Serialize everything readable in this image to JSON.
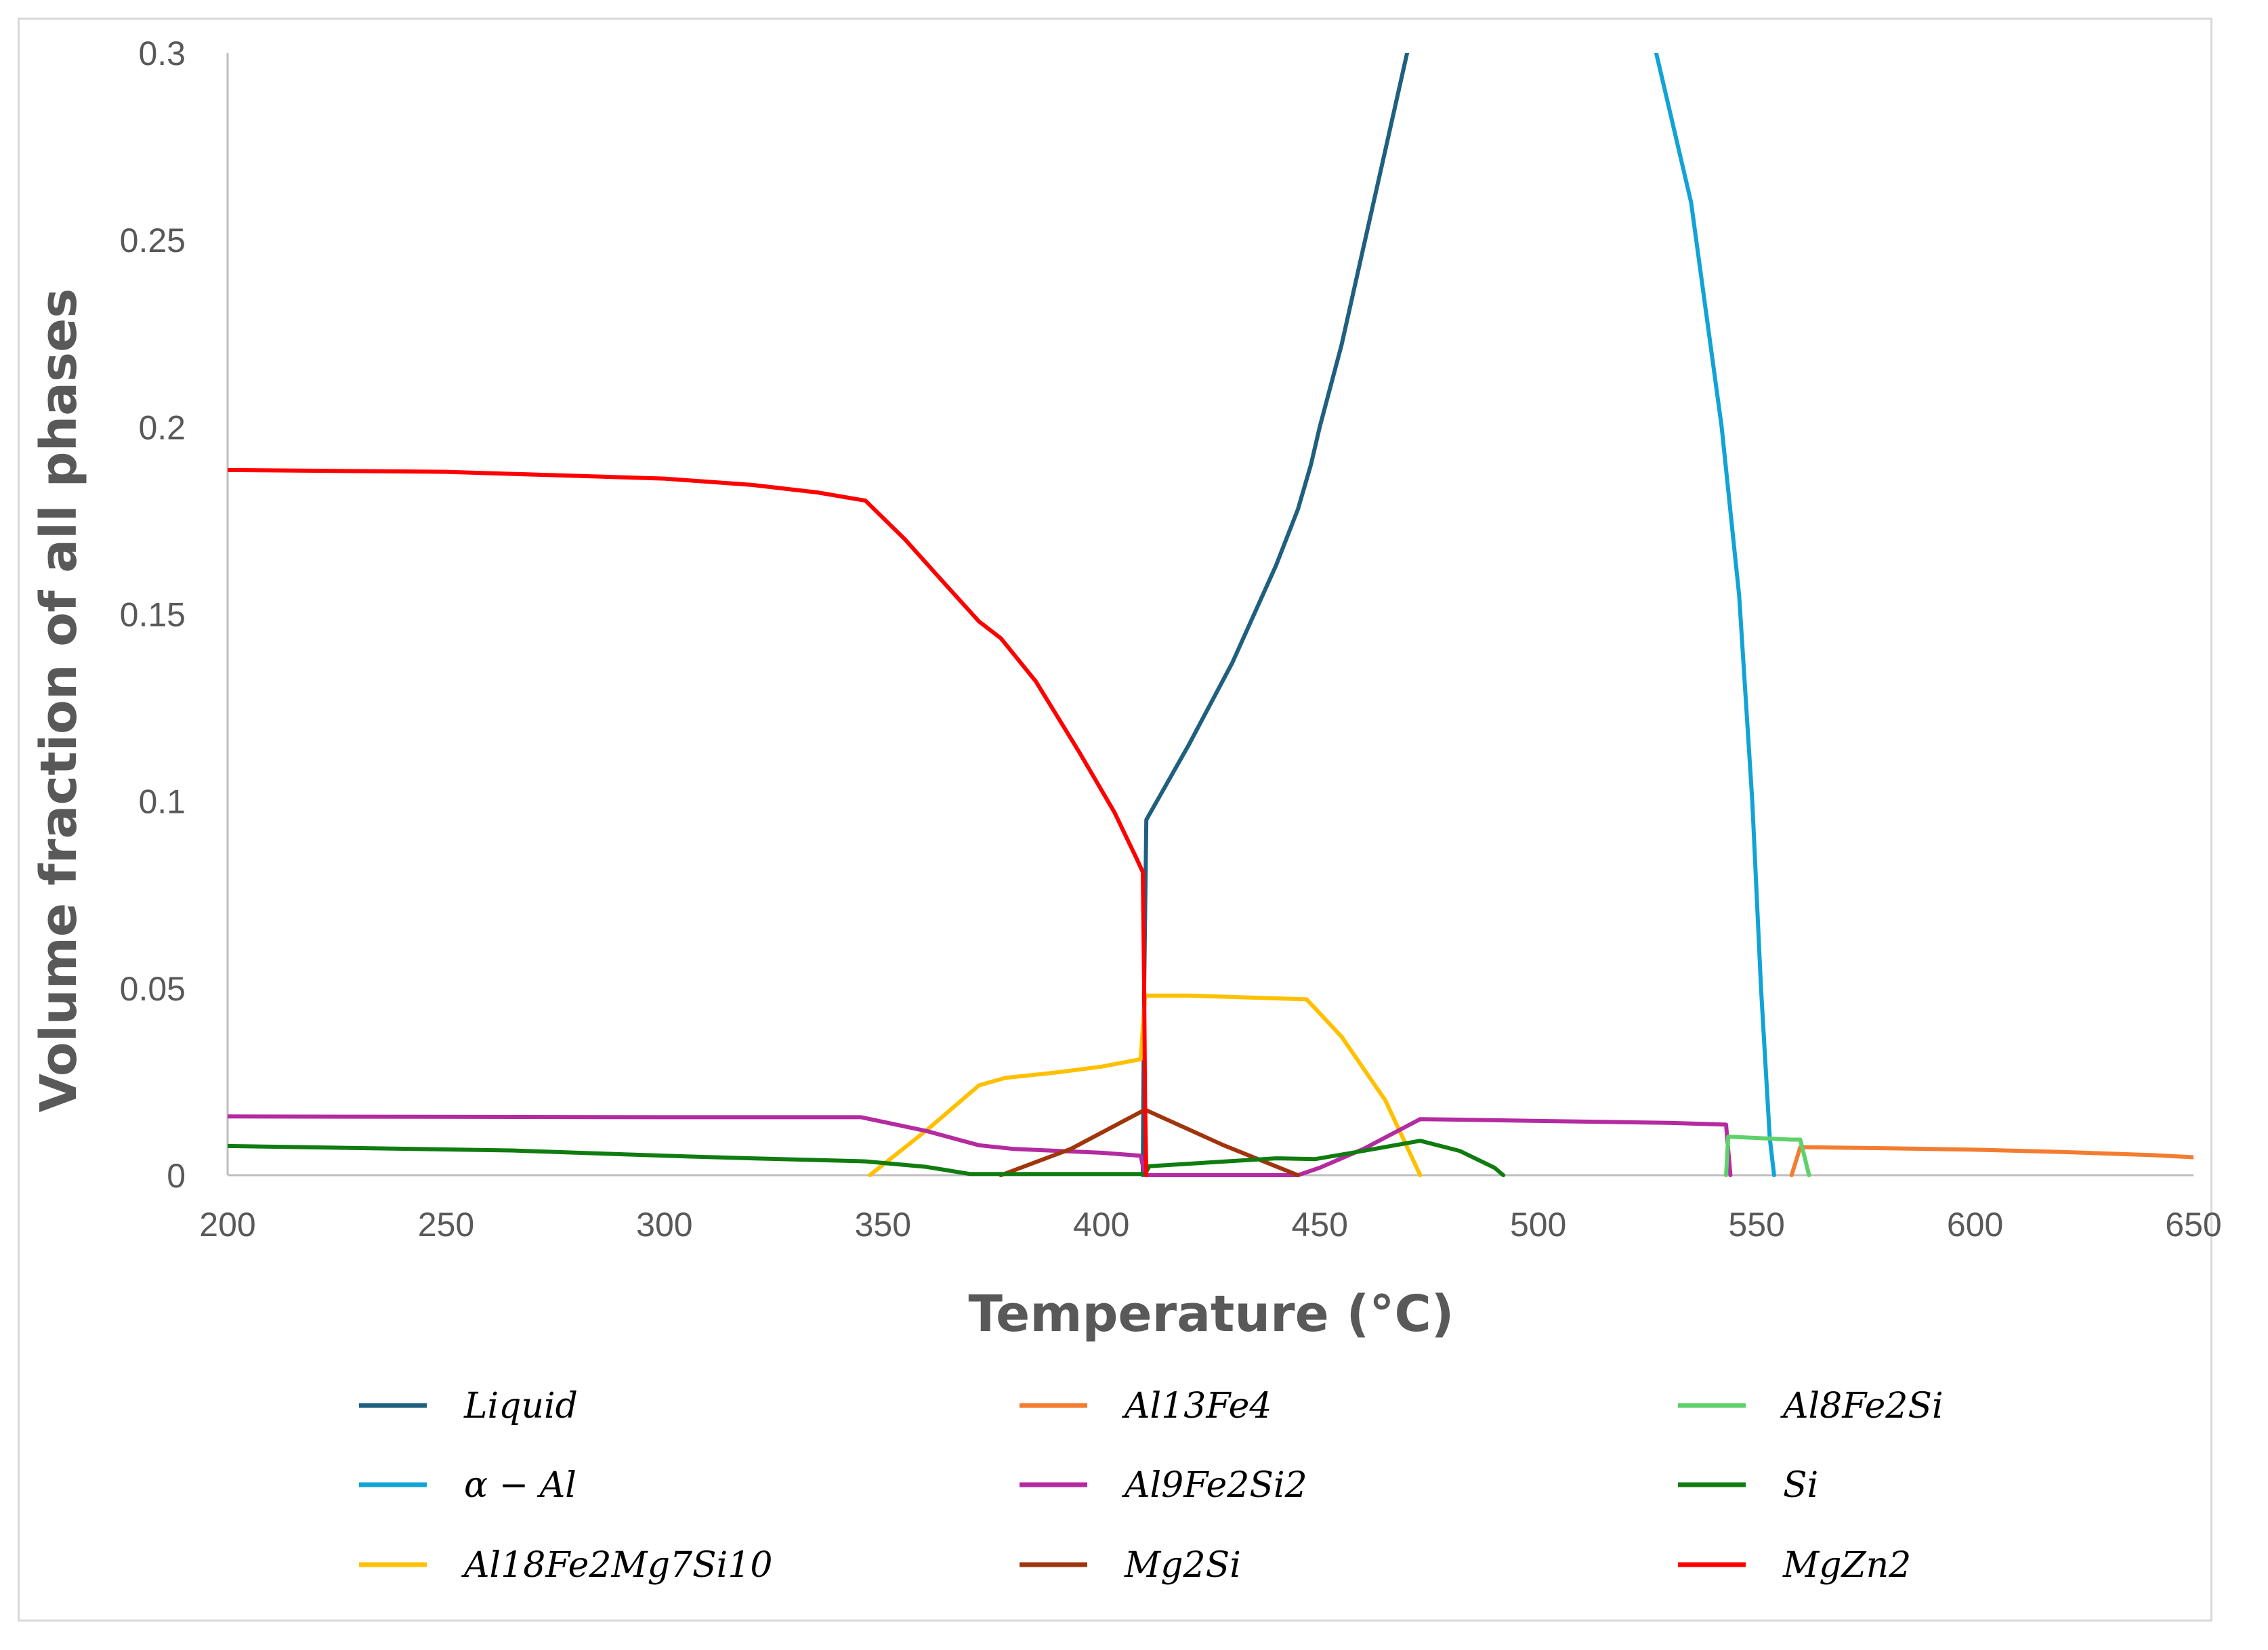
{
  "chart_data": {
    "type": "line",
    "title": "",
    "xlabel": "Temperature (°C)",
    "ylabel": "Volume fraction of all phases",
    "xlim": [
      200,
      650
    ],
    "ylim": [
      0,
      0.3
    ],
    "xticks": [
      "200",
      "250",
      "300",
      "350",
      "400",
      "450",
      "500",
      "550",
      "600",
      "650"
    ],
    "yticks": [
      "0",
      "0.05",
      "0.1",
      "0.15",
      "0.2",
      "0.25",
      "0.3"
    ],
    "legend_position": "bottom",
    "series": [
      {
        "name": "Liquid",
        "color": "#1f5f7f",
        "points": [
          [
            409.5,
            0
          ],
          [
            409.8,
            0.05
          ],
          [
            410.3,
            0.095
          ],
          [
            420,
            0.115
          ],
          [
            430,
            0.137
          ],
          [
            440,
            0.163
          ],
          [
            445,
            0.178
          ],
          [
            448,
            0.19
          ],
          [
            450,
            0.2
          ],
          [
            455,
            0.222
          ],
          [
            460,
            0.248
          ],
          [
            465,
            0.274
          ],
          [
            470,
            0.3
          ]
        ]
      },
      {
        "name": "α − Al",
        "color": "#12a3d6",
        "points": [
          [
            527,
            0.3
          ],
          [
            535,
            0.26
          ],
          [
            542,
            0.2
          ],
          [
            546,
            0.155
          ],
          [
            549,
            0.1
          ],
          [
            551,
            0.05
          ],
          [
            553,
            0.01
          ],
          [
            554,
            0
          ]
        ]
      },
      {
        "name": "Al18Fe2Mg7Si10",
        "color": "#ffc000",
        "points": [
          [
            347,
            0
          ],
          [
            360,
            0.012
          ],
          [
            372,
            0.024
          ],
          [
            378,
            0.026
          ],
          [
            390,
            0.0275
          ],
          [
            400,
            0.029
          ],
          [
            409,
            0.031
          ],
          [
            410,
            0.048
          ],
          [
            420,
            0.048
          ],
          [
            447,
            0.047
          ],
          [
            455,
            0.037
          ],
          [
            465,
            0.02
          ],
          [
            473,
            0
          ]
        ]
      },
      {
        "name": "Al13Fe4",
        "color": "#f47c30",
        "points": [
          [
            558,
            0
          ],
          [
            560,
            0.0075
          ],
          [
            580,
            0.0072
          ],
          [
            600,
            0.0068
          ],
          [
            620,
            0.0062
          ],
          [
            640,
            0.0054
          ],
          [
            650,
            0.0048
          ]
        ]
      },
      {
        "name": "Al9Fe2Si2",
        "color": "#b42aa0",
        "points": [
          [
            200,
            0.0157
          ],
          [
            300,
            0.0155
          ],
          [
            345,
            0.0155
          ],
          [
            360,
            0.0118
          ],
          [
            372,
            0.008
          ],
          [
            380,
            0.007
          ],
          [
            400,
            0.006
          ],
          [
            409,
            0.0052
          ],
          [
            410,
            0
          ],
          [
            445,
            0
          ],
          [
            450,
            0.002
          ],
          [
            460,
            0.007
          ],
          [
            473,
            0.015
          ],
          [
            500,
            0.0145
          ],
          [
            530,
            0.014
          ],
          [
            543,
            0.0135
          ],
          [
            544,
            0
          ]
        ]
      },
      {
        "name": "Mg2Si",
        "color": "#a0350c",
        "points": [
          [
            377,
            0
          ],
          [
            393,
            0.007
          ],
          [
            410,
            0.0175
          ],
          [
            428,
            0.008
          ],
          [
            445,
            0
          ]
        ]
      },
      {
        "name": "Al8Fe2Si",
        "color": "#5fd16c",
        "points": [
          [
            543,
            0
          ],
          [
            543.5,
            0.0103
          ],
          [
            558,
            0.0095
          ],
          [
            560,
            0.0095
          ],
          [
            562,
            0
          ]
        ]
      },
      {
        "name": "Si",
        "color": "#107c10",
        "points": [
          [
            200,
            0.0078
          ],
          [
            265,
            0.0066
          ],
          [
            300,
            0.0052
          ],
          [
            320,
            0.0045
          ],
          [
            346,
            0.0037
          ],
          [
            360,
            0.0022
          ],
          [
            370,
            0.0003
          ],
          [
            410,
            0.0003
          ],
          [
            411,
            0.0024
          ],
          [
            440,
            0.0045
          ],
          [
            449,
            0.0043
          ],
          [
            460,
            0.0065
          ],
          [
            473,
            0.0092
          ],
          [
            482,
            0.0065
          ],
          [
            490,
            0.002
          ],
          [
            492,
            0
          ]
        ]
      },
      {
        "name": "MgZn2",
        "color": "#ff0000",
        "points": [
          [
            200,
            0.1885
          ],
          [
            250,
            0.188
          ],
          [
            300,
            0.1862
          ],
          [
            320,
            0.1845
          ],
          [
            335,
            0.1825
          ],
          [
            346,
            0.1803
          ],
          [
            355,
            0.17
          ],
          [
            365,
            0.157
          ],
          [
            372,
            0.148
          ],
          [
            377,
            0.1435
          ],
          [
            385,
            0.132
          ],
          [
            395,
            0.113
          ],
          [
            403,
            0.097
          ],
          [
            408,
            0.0848
          ],
          [
            409.5,
            0.081
          ],
          [
            409.8,
            0.05
          ],
          [
            410,
            0.02
          ],
          [
            410.3,
            0
          ]
        ]
      }
    ]
  },
  "legend": [
    {
      "label": "Liquid",
      "color": "#1f5f7f"
    },
    {
      "label": "Al13Fe4",
      "color": "#f47c30"
    },
    {
      "label": "Al8Fe2Si",
      "color": "#5fd16c"
    },
    {
      "label": "α − Al",
      "color": "#12a3d6"
    },
    {
      "label": "Al9Fe2Si2",
      "color": "#b42aa0"
    },
    {
      "label": "Si",
      "color": "#107c10"
    },
    {
      "label": "Al18Fe2Mg7Si10",
      "color": "#ffc000"
    },
    {
      "label": "Mg2Si",
      "color": "#a0350c"
    },
    {
      "label": "MgZn2",
      "color": "#ff0000"
    }
  ]
}
